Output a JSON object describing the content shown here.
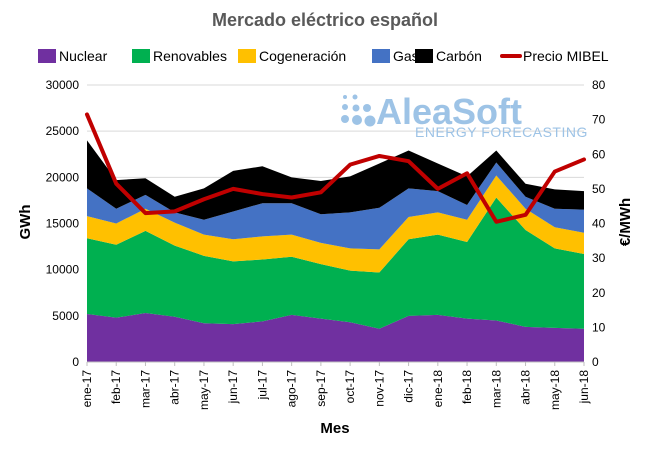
{
  "chart_data": {
    "type": "area",
    "title": "Mercado eléctrico español",
    "xlabel": "Mes",
    "ylabel": "GWh",
    "y2label": "€/MWh",
    "ylim": [
      0,
      30000
    ],
    "y2lim": [
      0,
      80
    ],
    "yticks": [
      "0",
      "5000",
      "10000",
      "15000",
      "20000",
      "25000",
      "30000"
    ],
    "y2ticks": [
      "0",
      "10",
      "20",
      "30",
      "40",
      "50",
      "60",
      "70",
      "80"
    ],
    "grid": true,
    "legend_position": "top",
    "categories": [
      "ene-17",
      "feb-17",
      "mar-17",
      "abr-17",
      "may-17",
      "jun-17",
      "jul-17",
      "ago-17",
      "sep-17",
      "oct-17",
      "nov-17",
      "dic-17",
      "ene-18",
      "feb-18",
      "mar-18",
      "abr-18",
      "may-18",
      "jun-18"
    ],
    "series": [
      {
        "name": "Nuclear",
        "color": "#7030a0",
        "values": [
          5200,
          4800,
          5300,
          4900,
          4200,
          4100,
          4400,
          5100,
          4700,
          4300,
          3600,
          5000,
          5100,
          4700,
          4500,
          3800,
          3700,
          3600
        ]
      },
      {
        "name": "Renovables",
        "color": "#00b050",
        "values": [
          8200,
          7900,
          8900,
          7700,
          7300,
          6800,
          6700,
          6300,
          5900,
          5600,
          6100,
          8300,
          8700,
          8300,
          13300,
          10500,
          8600,
          8100
        ]
      },
      {
        "name": "Cogeneración",
        "color": "#ffc000",
        "values": [
          2400,
          2300,
          2400,
          2500,
          2300,
          2400,
          2500,
          2400,
          2300,
          2400,
          2500,
          2400,
          2400,
          2400,
          2400,
          2300,
          2300,
          2300
        ]
      },
      {
        "name": "Gas",
        "color": "#4472c4",
        "values": [
          3000,
          1600,
          1500,
          1100,
          1600,
          3000,
          3600,
          3400,
          3100,
          3900,
          4500,
          3100,
          2300,
          1600,
          1400,
          1300,
          2000,
          2500
        ]
      },
      {
        "name": "Carbón",
        "color": "#000000",
        "values": [
          5200,
          3100,
          1800,
          1700,
          3400,
          4400,
          4000,
          2800,
          3600,
          3900,
          4800,
          4100,
          3000,
          3100,
          1300,
          1400,
          2100,
          2000
        ]
      },
      {
        "name": "Precio MIBEL",
        "color": "#c00000",
        "axis": "right",
        "type": "line",
        "values": [
          71.5,
          51.5,
          43,
          43.5,
          47,
          50,
          48.5,
          47.5,
          49,
          57,
          59.5,
          58,
          50,
          54.5,
          40.5,
          42.5,
          55,
          58.5
        ]
      }
    ]
  },
  "watermark": {
    "brand": "AleaSoft",
    "tagline": "ENERGY FORECASTING"
  }
}
